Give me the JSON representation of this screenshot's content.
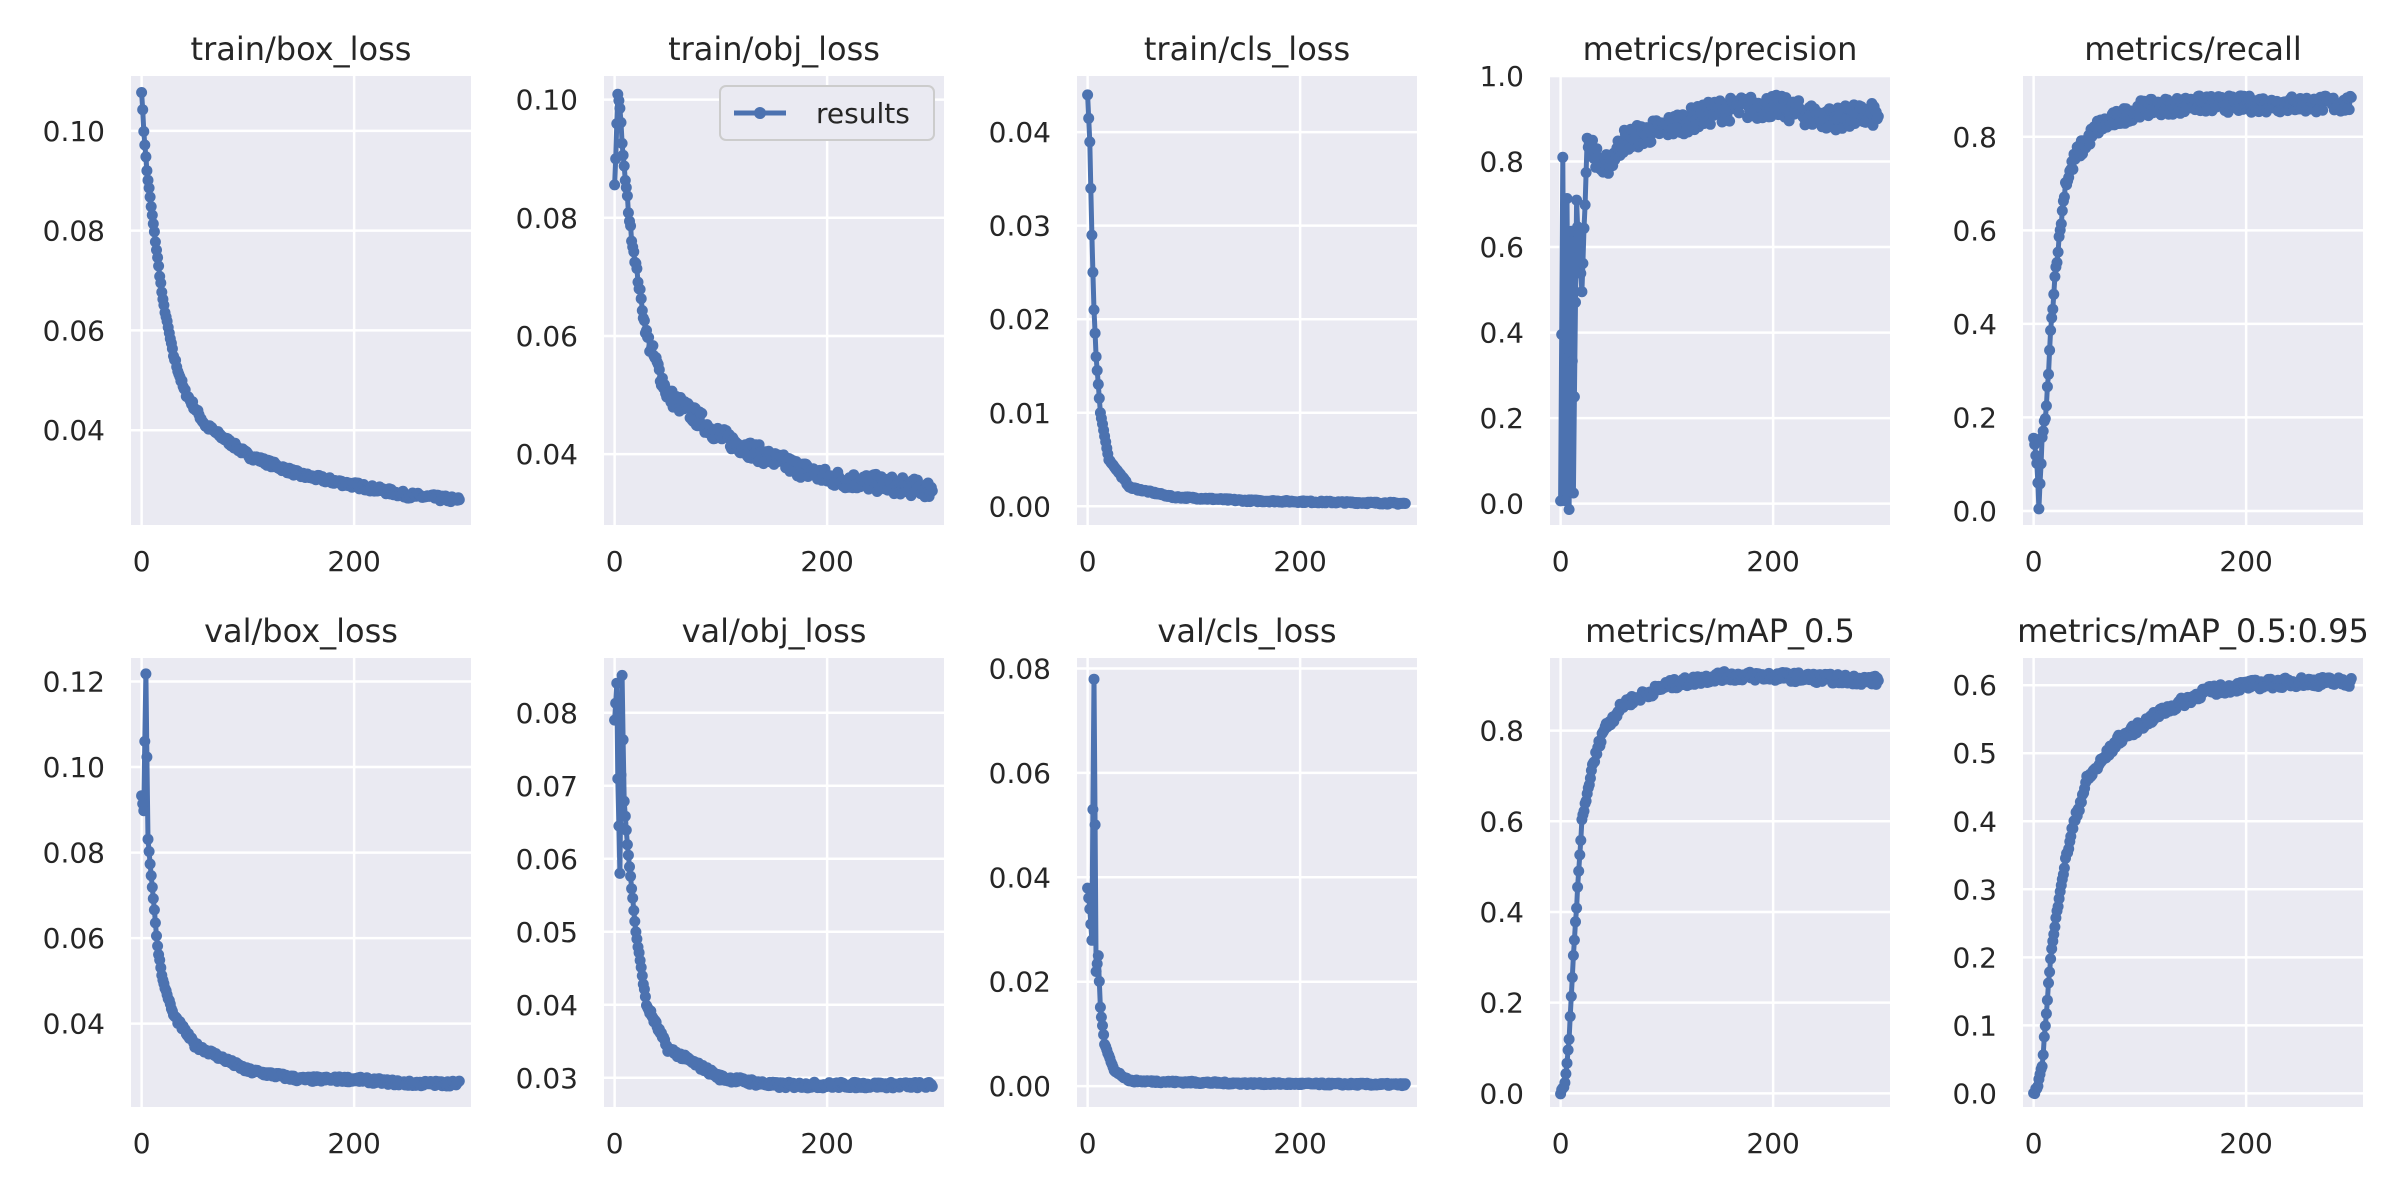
{
  "legend": {
    "label": "results"
  },
  "colors": {
    "series": "#4c72b0",
    "panel_bg": "#eaeaf2",
    "grid": "#ffffff"
  },
  "chart_data": [
    {
      "type": "line",
      "title": "train/box_loss",
      "xlim": [
        -10,
        310
      ],
      "ylim": [
        0.021,
        0.111
      ],
      "xticks": [
        0,
        200
      ],
      "xtick_labels": [
        "0",
        "200"
      ],
      "yticks": [
        0.04,
        0.06,
        0.08,
        0.1
      ],
      "ytick_labels": [
        "0.04",
        "0.06",
        "0.08",
        "0.10"
      ],
      "series": [
        {
          "name": "results",
          "curve": "decay",
          "start": 0.108,
          "end": 0.026,
          "tau": 35,
          "noise": 0.0006,
          "anchors": [
            [
              0,
              0.108
            ],
            [
              2,
              0.1
            ],
            [
              5,
              0.092
            ],
            [
              10,
              0.083
            ],
            [
              20,
              0.066
            ],
            [
              30,
              0.055
            ],
            [
              40,
              0.048
            ],
            [
              60,
              0.041
            ],
            [
              100,
              0.035
            ],
            [
              150,
              0.031
            ],
            [
              200,
              0.029
            ],
            [
              250,
              0.027
            ],
            [
              299,
              0.026
            ]
          ]
        }
      ]
    },
    {
      "type": "line",
      "title": "train/obj_loss",
      "xlim": [
        -10,
        310
      ],
      "ylim": [
        0.028,
        0.104
      ],
      "xticks": [
        0,
        200
      ],
      "xtick_labels": [
        "0",
        "200"
      ],
      "yticks": [
        0.04,
        0.06,
        0.08,
        0.1
      ],
      "ytick_labels": [
        "0.04",
        "0.06",
        "0.08",
        "0.10"
      ],
      "series": [
        {
          "name": "results",
          "curve": "decay",
          "start": 0.1,
          "end": 0.034,
          "tau": 60,
          "noise": 0.0015,
          "anchors": [
            [
              0,
              0.085
            ],
            [
              3,
              0.101
            ],
            [
              5,
              0.099
            ],
            [
              8,
              0.09
            ],
            [
              15,
              0.078
            ],
            [
              30,
              0.06
            ],
            [
              50,
              0.05
            ],
            [
              100,
              0.043
            ],
            [
              150,
              0.039
            ],
            [
              200,
              0.036
            ],
            [
              250,
              0.035
            ],
            [
              299,
              0.034
            ]
          ]
        }
      ],
      "show_legend": true,
      "legend_position": "upper right"
    },
    {
      "type": "line",
      "title": "train/cls_loss",
      "xlim": [
        -10,
        310
      ],
      "ylim": [
        -0.002,
        0.046
      ],
      "xticks": [
        0,
        200
      ],
      "xtick_labels": [
        "0",
        "200"
      ],
      "yticks": [
        0.0,
        0.01,
        0.02,
        0.03,
        0.04
      ],
      "ytick_labels": [
        "0.00",
        "0.01",
        "0.02",
        "0.03",
        "0.04"
      ],
      "series": [
        {
          "name": "results",
          "curve": "decay",
          "start": 0.044,
          "end": 0.0003,
          "tau": 8,
          "noise": 0.0001,
          "anchors": [
            [
              0,
              0.044
            ],
            [
              2,
              0.039
            ],
            [
              4,
              0.029
            ],
            [
              6,
              0.021
            ],
            [
              8,
              0.016
            ],
            [
              12,
              0.01
            ],
            [
              20,
              0.005
            ],
            [
              40,
              0.002
            ],
            [
              80,
              0.001
            ],
            [
              150,
              0.0006
            ],
            [
              299,
              0.0003
            ]
          ]
        }
      ]
    },
    {
      "type": "line",
      "title": "metrics/precision",
      "xlim": [
        -10,
        310
      ],
      "ylim": [
        -0.05,
        1.0
      ],
      "xticks": [
        0,
        200
      ],
      "xtick_labels": [
        "0",
        "200"
      ],
      "yticks": [
        0.0,
        0.2,
        0.4,
        0.6,
        0.8,
        1.0
      ],
      "ytick_labels": [
        "0.0",
        "0.2",
        "0.4",
        "0.6",
        "0.8",
        "1.0"
      ],
      "series": [
        {
          "name": "results",
          "curve": "rise",
          "start": 0.55,
          "end": 0.91,
          "tau": 35,
          "noise": 0.028,
          "anchors": [
            [
              0,
              0.0
            ],
            [
              2,
              0.8
            ],
            [
              4,
              0.02
            ],
            [
              6,
              0.7
            ],
            [
              8,
              0.0
            ],
            [
              10,
              0.65
            ],
            [
              12,
              0.02
            ],
            [
              15,
              0.7
            ],
            [
              20,
              0.5
            ],
            [
              25,
              0.85
            ],
            [
              40,
              0.78
            ],
            [
              60,
              0.85
            ],
            [
              100,
              0.88
            ],
            [
              150,
              0.92
            ],
            [
              200,
              0.93
            ],
            [
              250,
              0.9
            ],
            [
              299,
              0.91
            ]
          ]
        }
      ]
    },
    {
      "type": "line",
      "title": "metrics/recall",
      "xlim": [
        -10,
        310
      ],
      "ylim": [
        -0.03,
        0.93
      ],
      "xticks": [
        0,
        200
      ],
      "xtick_labels": [
        "0",
        "200"
      ],
      "yticks": [
        0.0,
        0.2,
        0.4,
        0.6,
        0.8
      ],
      "ytick_labels": [
        "0.0",
        "0.2",
        "0.4",
        "0.6",
        "0.8"
      ],
      "series": [
        {
          "name": "results",
          "curve": "rise",
          "start": 0.1,
          "end": 0.87,
          "tau": 18,
          "noise": 0.018,
          "anchors": [
            [
              0,
              0.15
            ],
            [
              3,
              0.1
            ],
            [
              5,
              0.01
            ],
            [
              8,
              0.15
            ],
            [
              12,
              0.22
            ],
            [
              16,
              0.38
            ],
            [
              20,
              0.5
            ],
            [
              25,
              0.6
            ],
            [
              30,
              0.7
            ],
            [
              40,
              0.76
            ],
            [
              60,
              0.82
            ],
            [
              100,
              0.86
            ],
            [
              150,
              0.87
            ],
            [
              200,
              0.87
            ],
            [
              299,
              0.87
            ]
          ]
        }
      ]
    },
    {
      "type": "line",
      "title": "val/box_loss",
      "xlim": [
        -10,
        310
      ],
      "ylim": [
        0.0205,
        0.1255
      ],
      "xticks": [
        0,
        200
      ],
      "xtick_labels": [
        "0",
        "200"
      ],
      "yticks": [
        0.04,
        0.06,
        0.08,
        0.1,
        0.12
      ],
      "ytick_labels": [
        "0.04",
        "0.06",
        "0.08",
        "0.10",
        "0.12"
      ],
      "series": [
        {
          "name": "results",
          "curve": "decay",
          "start": 0.09,
          "end": 0.026,
          "tau": 28,
          "noise": 0.0006,
          "anchors": [
            [
              0,
              0.093
            ],
            [
              2,
              0.09
            ],
            [
              4,
              0.122
            ],
            [
              6,
              0.083
            ],
            [
              10,
              0.072
            ],
            [
              15,
              0.058
            ],
            [
              20,
              0.05
            ],
            [
              30,
              0.042
            ],
            [
              50,
              0.035
            ],
            [
              100,
              0.029
            ],
            [
              150,
              0.027
            ],
            [
              200,
              0.027
            ],
            [
              250,
              0.026
            ],
            [
              299,
              0.026
            ]
          ]
        }
      ]
    },
    {
      "type": "line",
      "title": "val/obj_loss",
      "xlim": [
        -10,
        310
      ],
      "ylim": [
        0.026,
        0.0875
      ],
      "xticks": [
        0,
        200
      ],
      "xtick_labels": [
        "0",
        "200"
      ],
      "yticks": [
        0.03,
        0.04,
        0.05,
        0.06,
        0.07,
        0.08
      ],
      "ytick_labels": [
        "0.03",
        "0.04",
        "0.05",
        "0.06",
        "0.07",
        "0.08"
      ],
      "series": [
        {
          "name": "results",
          "curve": "decay",
          "start": 0.078,
          "end": 0.029,
          "tau": 30,
          "noise": 0.0004,
          "anchors": [
            [
              0,
              0.079
            ],
            [
              2,
              0.084
            ],
            [
              3,
              0.071
            ],
            [
              5,
              0.058
            ],
            [
              7,
              0.085
            ],
            [
              9,
              0.068
            ],
            [
              12,
              0.062
            ],
            [
              20,
              0.05
            ],
            [
              30,
              0.04
            ],
            [
              50,
              0.034
            ],
            [
              100,
              0.03
            ],
            [
              150,
              0.029
            ],
            [
              200,
              0.029
            ],
            [
              299,
              0.029
            ]
          ]
        }
      ]
    },
    {
      "type": "line",
      "title": "val/cls_loss",
      "xlim": [
        -10,
        310
      ],
      "ylim": [
        -0.004,
        0.082
      ],
      "xticks": [
        0,
        200
      ],
      "xtick_labels": [
        "0",
        "200"
      ],
      "yticks": [
        0.0,
        0.02,
        0.04,
        0.06,
        0.08
      ],
      "ytick_labels": [
        "0.00",
        "0.02",
        "0.04",
        "0.06",
        "0.08"
      ],
      "series": [
        {
          "name": "results",
          "curve": "decay",
          "start": 0.035,
          "end": 0.0003,
          "tau": 8,
          "noise": 0.0002,
          "anchors": [
            [
              0,
              0.038
            ],
            [
              2,
              0.034
            ],
            [
              4,
              0.028
            ],
            [
              6,
              0.078
            ],
            [
              8,
              0.022
            ],
            [
              10,
              0.025
            ],
            [
              12,
              0.015
            ],
            [
              16,
              0.008
            ],
            [
              25,
              0.003
            ],
            [
              40,
              0.001
            ],
            [
              80,
              0.0008
            ],
            [
              150,
              0.0005
            ],
            [
              299,
              0.0003
            ]
          ]
        }
      ]
    },
    {
      "type": "line",
      "title": "metrics/mAP_0.5",
      "xlim": [
        -10,
        310
      ],
      "ylim": [
        -0.03,
        0.96
      ],
      "xticks": [
        0,
        200
      ],
      "xtick_labels": [
        "0",
        "200"
      ],
      "yticks": [
        0.0,
        0.2,
        0.4,
        0.6,
        0.8
      ],
      "ytick_labels": [
        "0.0",
        "0.2",
        "0.4",
        "0.6",
        "0.8"
      ],
      "series": [
        {
          "name": "results",
          "curve": "rise",
          "start": 0.0,
          "end": 0.91,
          "tau": 20,
          "noise": 0.01,
          "anchors": [
            [
              0,
              0.0
            ],
            [
              4,
              0.02
            ],
            [
              8,
              0.12
            ],
            [
              12,
              0.3
            ],
            [
              16,
              0.45
            ],
            [
              20,
              0.6
            ],
            [
              30,
              0.72
            ],
            [
              40,
              0.8
            ],
            [
              60,
              0.86
            ],
            [
              100,
              0.9
            ],
            [
              150,
              0.92
            ],
            [
              200,
              0.92
            ],
            [
              299,
              0.91
            ]
          ]
        }
      ]
    },
    {
      "type": "line",
      "title": "metrics/mAP_0.5:0.95",
      "xlim": [
        -10,
        310
      ],
      "ylim": [
        -0.02,
        0.64
      ],
      "xticks": [
        0,
        200
      ],
      "xtick_labels": [
        "0",
        "200"
      ],
      "yticks": [
        0.0,
        0.1,
        0.2,
        0.3,
        0.4,
        0.5,
        0.6
      ],
      "ytick_labels": [
        "0.0",
        "0.1",
        "0.2",
        "0.3",
        "0.4",
        "0.5",
        "0.6"
      ],
      "series": [
        {
          "name": "results",
          "curve": "rise",
          "start": 0.0,
          "end": 0.605,
          "tau": 40,
          "noise": 0.007,
          "anchors": [
            [
              0,
              0.0
            ],
            [
              4,
              0.01
            ],
            [
              8,
              0.04
            ],
            [
              12,
              0.12
            ],
            [
              16,
              0.2
            ],
            [
              25,
              0.3
            ],
            [
              35,
              0.38
            ],
            [
              50,
              0.46
            ],
            [
              80,
              0.52
            ],
            [
              120,
              0.56
            ],
            [
              160,
              0.59
            ],
            [
              200,
              0.6
            ],
            [
              250,
              0.605
            ],
            [
              299,
              0.605
            ]
          ]
        }
      ]
    }
  ]
}
